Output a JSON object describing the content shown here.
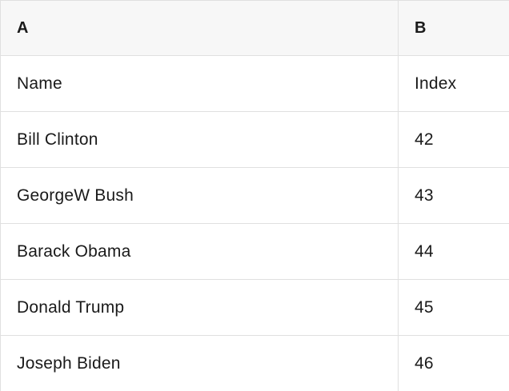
{
  "table": {
    "header": [
      "A",
      "B"
    ],
    "rows": [
      [
        "Name",
        "Index"
      ],
      [
        "Bill Clinton",
        "42"
      ],
      [
        "GeorgeW Bush",
        "43"
      ],
      [
        "Barack Obama",
        "44"
      ],
      [
        "Donald Trump",
        "45"
      ],
      [
        "Joseph Biden",
        "46"
      ]
    ]
  },
  "colors": {
    "header_bg": "#f7f7f7",
    "border": "#e0e0e0",
    "text": "#1a1a1a",
    "body_bg": "#ffffff"
  }
}
